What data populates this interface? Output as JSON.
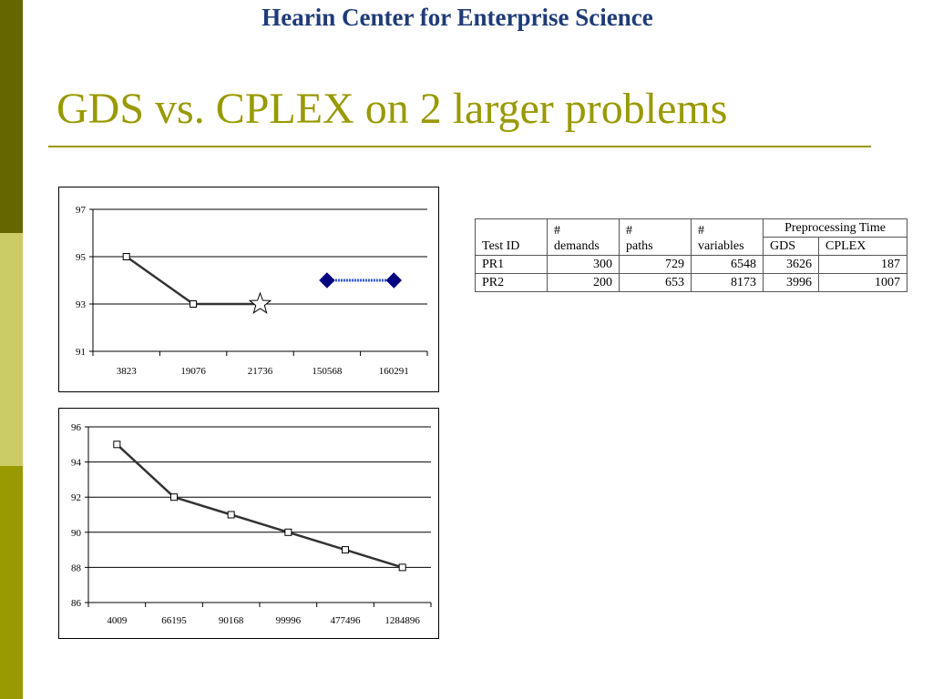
{
  "header": {
    "org": "Hearin Center for Enterprise Science"
  },
  "slide": {
    "title": "GDS vs. CPLEX on 2 larger problems"
  },
  "chart_data": [
    {
      "type": "line",
      "categories": [
        "3823",
        "19076",
        "21736",
        "150568",
        "160291"
      ],
      "ylim": [
        91,
        97
      ],
      "yticks": [
        91,
        93,
        95,
        97
      ],
      "grid": true,
      "series": [
        {
          "values": [
            95,
            93,
            93,
            null,
            null
          ],
          "marker": "square",
          "color": "#333333"
        },
        {
          "values": [
            null,
            null,
            93,
            null,
            null
          ],
          "marker": "star",
          "color": "#333333"
        },
        {
          "values": [
            null,
            null,
            null,
            94,
            94
          ],
          "marker": "diamond",
          "color": "#000080"
        }
      ]
    },
    {
      "type": "line",
      "categories": [
        "4009",
        "66195",
        "90168",
        "99996",
        "477496",
        "1284896"
      ],
      "ylim": [
        86,
        96
      ],
      "yticks": [
        86,
        88,
        90,
        92,
        94,
        96
      ],
      "grid": true,
      "series": [
        {
          "values": [
            95,
            92,
            91,
            90,
            89,
            88
          ],
          "marker": "square",
          "color": "#333333"
        }
      ]
    }
  ],
  "table": {
    "group_header": "Preprocessing Time",
    "headers": {
      "test_id": "Test ID",
      "demands_hash": "#",
      "demands": "demands",
      "paths_hash": "#",
      "paths": "paths",
      "variables_hash": "#",
      "variables": "variables",
      "gds": "GDS",
      "cplex": "CPLEX"
    },
    "rows": [
      {
        "id": "PR1",
        "demands": "300",
        "paths": "729",
        "variables": "6548",
        "gds": "3626",
        "cplex": "187"
      },
      {
        "id": "PR2",
        "demands": "200",
        "paths": "653",
        "variables": "8173",
        "gds": "3996",
        "cplex": "1007"
      }
    ]
  }
}
